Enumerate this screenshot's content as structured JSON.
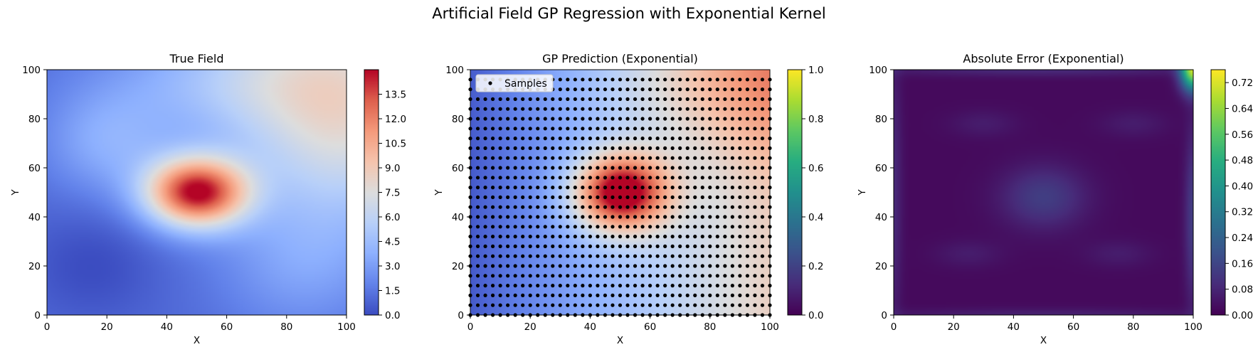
{
  "figure": {
    "suptitle": "Artificial Field GP Regression with Exponential Kernel"
  },
  "chart_data": [
    {
      "type": "heatmap",
      "title": "True Field",
      "xlabel": "X",
      "ylabel": "Y",
      "xlim": [
        0,
        100
      ],
      "ylim": [
        0,
        100
      ],
      "xticks": [
        0,
        20,
        40,
        60,
        80,
        100
      ],
      "yticks": [
        0,
        20,
        40,
        60,
        80,
        100
      ],
      "colormap": "coolwarm",
      "colorbar": {
        "range": [
          0,
          15
        ],
        "ticks": [
          "0.0",
          "1.5",
          "3.0",
          "4.5",
          "6.0",
          "7.5",
          "9.0",
          "10.5",
          "12.0",
          "13.5"
        ]
      },
      "field": {
        "base": 1.0,
        "components": [
          {
            "kind": "gaussian",
            "cx": 50,
            "cy": 50,
            "amp": 13.5,
            "sx": 12,
            "sy": 10
          },
          {
            "kind": "gaussian",
            "cx": 95,
            "cy": 95,
            "amp": 5.5,
            "sx": 30,
            "sy": 30
          },
          {
            "kind": "gaussian",
            "cx": 55,
            "cy": 95,
            "amp": 2.0,
            "sx": 30,
            "sy": 15
          },
          {
            "kind": "gaussian",
            "cx": 100,
            "cy": 65,
            "amp": 2.5,
            "sx": 20,
            "sy": 25
          },
          {
            "kind": "gaussian",
            "cx": 20,
            "cy": 70,
            "amp": 2.5,
            "sx": 15,
            "sy": 15
          },
          {
            "kind": "gaussian",
            "cx": 85,
            "cy": 20,
            "amp": 2.0,
            "sx": 20,
            "sy": 20
          },
          {
            "kind": "gaussian",
            "cx": 15,
            "cy": 20,
            "amp": -1.0,
            "sx": 15,
            "sy": 15
          }
        ]
      }
    },
    {
      "type": "heatmap",
      "title": "GP Prediction (Exponential)",
      "xlabel": "X",
      "ylabel": "Y",
      "xlim": [
        0,
        100
      ],
      "ylim": [
        0,
        100
      ],
      "xticks": [
        0,
        20,
        40,
        60,
        80,
        100
      ],
      "yticks": [
        0,
        20,
        40,
        60,
        80,
        100
      ],
      "colormap": "coolwarm",
      "colorbar": {
        "colormap": "viridis",
        "range": [
          0,
          1
        ],
        "ticks": [
          "0.0",
          "0.2",
          "0.4",
          "0.6",
          "0.8",
          "1.0"
        ]
      },
      "field": {
        "base": 0.5,
        "xgrad": 0.08,
        "components": [
          {
            "kind": "gaussian",
            "cx": 50,
            "cy": 50,
            "amp": 12.0,
            "sx": 11,
            "sy": 11
          },
          {
            "kind": "gaussian",
            "cx": 100,
            "cy": 100,
            "amp": 3.5,
            "sx": 25,
            "sy": 25
          },
          {
            "kind": "gaussian",
            "cx": 55,
            "cy": 95,
            "amp": 1.0,
            "sx": 25,
            "sy": 15
          }
        ]
      },
      "samples": {
        "label": "Samples",
        "x_start": 0,
        "x_step": 2.5,
        "x_count": 41,
        "y_start": 0,
        "y_step": 4,
        "y_count": 25,
        "color": "#000000"
      },
      "legend": {
        "position": "upper-left",
        "entries": [
          "Samples"
        ]
      }
    },
    {
      "type": "heatmap",
      "title": "Absolute Error (Exponential)",
      "xlabel": "X",
      "ylabel": "Y",
      "xlim": [
        0,
        100
      ],
      "ylim": [
        0,
        100
      ],
      "xticks": [
        0,
        20,
        40,
        60,
        80,
        100
      ],
      "yticks": [
        0,
        20,
        40,
        60,
        80,
        100
      ],
      "colormap": "viridis",
      "colorbar": {
        "range": [
          0,
          0.76
        ],
        "ticks": [
          "0.00",
          "0.08",
          "0.16",
          "0.24",
          "0.32",
          "0.40",
          "0.48",
          "0.56",
          "0.64",
          "0.72"
        ]
      },
      "field": {
        "base": 0.02,
        "components": [
          {
            "kind": "gaussian",
            "cx": 50,
            "cy": 48,
            "amp": 0.12,
            "sx": 10,
            "sy": 9
          },
          {
            "kind": "gaussian",
            "cx": 100,
            "cy": 100,
            "amp": 0.65,
            "sx": 3,
            "sy": 6
          },
          {
            "kind": "gaussian",
            "cx": 100,
            "cy": 40,
            "amp": 0.12,
            "sx": 2,
            "sy": 25
          },
          {
            "kind": "gaussian",
            "cx": 0,
            "cy": 50,
            "amp": 0.07,
            "sx": 2,
            "sy": 40
          },
          {
            "kind": "gaussian",
            "cx": 50,
            "cy": 100,
            "amp": 0.07,
            "sx": 40,
            "sy": 2
          },
          {
            "kind": "gaussian",
            "cx": 50,
            "cy": 0,
            "amp": 0.05,
            "sx": 40,
            "sy": 2
          },
          {
            "kind": "gaussian",
            "cx": 30,
            "cy": 78,
            "amp": 0.04,
            "sx": 8,
            "sy": 4
          },
          {
            "kind": "gaussian",
            "cx": 80,
            "cy": 78,
            "amp": 0.04,
            "sx": 8,
            "sy": 4
          },
          {
            "kind": "gaussian",
            "cx": 25,
            "cy": 25,
            "amp": 0.04,
            "sx": 8,
            "sy": 4
          },
          {
            "kind": "gaussian",
            "cx": 75,
            "cy": 25,
            "amp": 0.04,
            "sx": 8,
            "sy": 4
          }
        ]
      }
    }
  ]
}
